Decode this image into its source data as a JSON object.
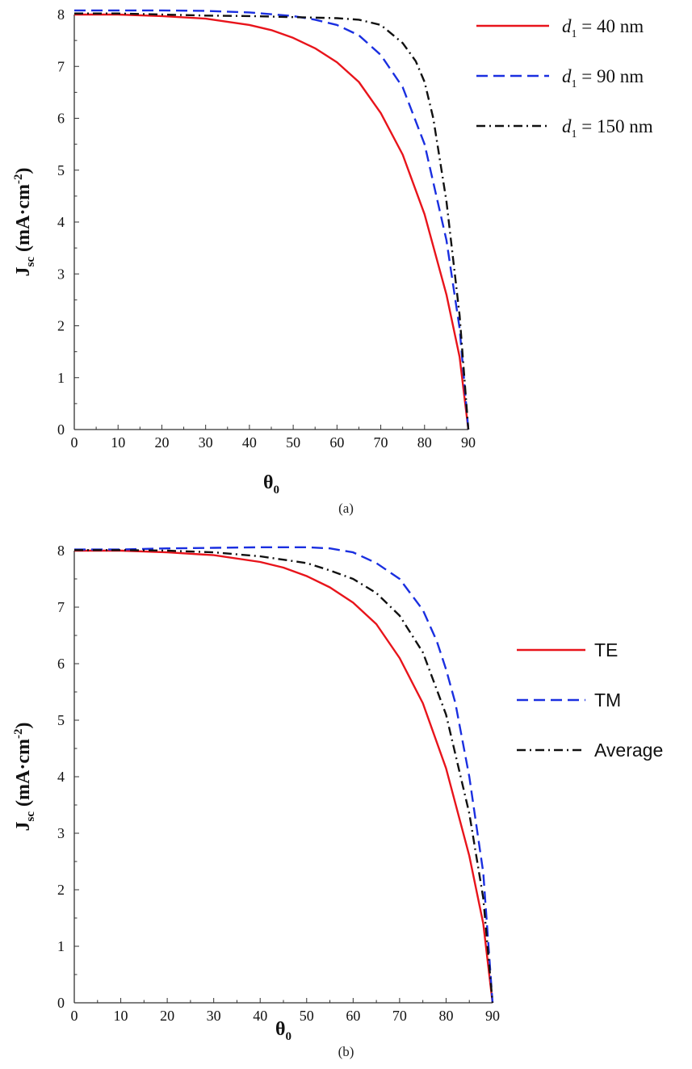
{
  "chart_data": [
    {
      "type": "line",
      "caption": "(a)",
      "xlabel": {
        "main": "θ",
        "sub": "0"
      },
      "ylabel": {
        "main": "J",
        "sub": "sc",
        "unit": " (mA·cm",
        "sup": "-2",
        "close": ")"
      },
      "xlim": [
        0,
        90
      ],
      "ylim": [
        0,
        8
      ],
      "xticks": [
        0,
        10,
        20,
        30,
        40,
        50,
        60,
        70,
        80,
        90
      ],
      "yticks": [
        0,
        1,
        2,
        3,
        4,
        5,
        6,
        7,
        8
      ],
      "grid": false,
      "legend_position": "top-right",
      "series": [
        {
          "name": "d1 = 40 nm",
          "legend": {
            "d": "d",
            "sub": "1",
            "rest": " = 40 nm"
          },
          "color": "#e8141b",
          "dash": "solid",
          "x": [
            0,
            10,
            20,
            30,
            40,
            45,
            50,
            55,
            60,
            65,
            70,
            75,
            80,
            85,
            88,
            90
          ],
          "y": [
            8.0,
            8.0,
            7.97,
            7.92,
            7.8,
            7.7,
            7.55,
            7.35,
            7.08,
            6.7,
            6.1,
            5.3,
            4.15,
            2.6,
            1.4,
            0.0
          ]
        },
        {
          "name": "d1 = 90 nm",
          "legend": {
            "d": "d",
            "sub": "1",
            "rest": " = 90 nm"
          },
          "color": "#1a2fe0",
          "dash": "dashed",
          "x": [
            0,
            10,
            20,
            30,
            40,
            50,
            55,
            60,
            65,
            70,
            75,
            80,
            85,
            88,
            90
          ],
          "y": [
            8.08,
            8.08,
            8.08,
            8.07,
            8.04,
            7.97,
            7.9,
            7.8,
            7.6,
            7.22,
            6.6,
            5.5,
            3.65,
            1.95,
            0.0
          ]
        },
        {
          "name": "d1 = 150 nm",
          "legend": {
            "d": "d",
            "sub": "1",
            "rest": " = 150 nm"
          },
          "color": "#111111",
          "dash": "dashdot",
          "x": [
            0,
            10,
            20,
            30,
            40,
            50,
            60,
            65,
            70,
            75,
            78,
            80,
            82,
            85,
            88,
            90
          ],
          "y": [
            8.02,
            8.02,
            8.0,
            7.98,
            7.97,
            7.95,
            7.93,
            7.9,
            7.8,
            7.45,
            7.1,
            6.7,
            6.0,
            4.4,
            2.2,
            0.0
          ]
        }
      ]
    },
    {
      "type": "line",
      "caption": "(b)",
      "xlabel": {
        "main": "θ",
        "sub": "0"
      },
      "ylabel": {
        "main": "J",
        "sub": "sc",
        "unit": " (mA·cm",
        "sup": "-2",
        "close": ")"
      },
      "xlim": [
        0,
        90
      ],
      "ylim": [
        0,
        8
      ],
      "xticks": [
        0,
        10,
        20,
        30,
        40,
        50,
        60,
        70,
        80,
        90
      ],
      "yticks": [
        0,
        1,
        2,
        3,
        4,
        5,
        6,
        7,
        8
      ],
      "grid": false,
      "legend_position": "right",
      "series": [
        {
          "name": "TE",
          "color": "#e8141b",
          "dash": "solid",
          "x": [
            0,
            10,
            20,
            30,
            40,
            45,
            50,
            55,
            60,
            65,
            70,
            75,
            80,
            85,
            88,
            90
          ],
          "y": [
            8.0,
            8.0,
            7.97,
            7.92,
            7.8,
            7.7,
            7.55,
            7.35,
            7.08,
            6.7,
            6.1,
            5.3,
            4.15,
            2.6,
            1.4,
            0.0
          ]
        },
        {
          "name": "TM",
          "color": "#1a2fe0",
          "dash": "dashed",
          "x": [
            0,
            10,
            20,
            30,
            40,
            50,
            55,
            60,
            65,
            70,
            75,
            78,
            80,
            82,
            85,
            88,
            90
          ],
          "y": [
            8.02,
            8.02,
            8.04,
            8.05,
            8.06,
            8.06,
            8.04,
            7.97,
            7.78,
            7.5,
            6.95,
            6.4,
            5.9,
            5.3,
            4.0,
            2.3,
            0.0
          ]
        },
        {
          "name": "Average",
          "color": "#111111",
          "dash": "dashdot",
          "x": [
            0,
            10,
            20,
            30,
            40,
            45,
            50,
            55,
            60,
            65,
            70,
            75,
            80,
            85,
            88,
            90
          ],
          "y": [
            8.01,
            8.01,
            8.0,
            7.97,
            7.9,
            7.84,
            7.78,
            7.65,
            7.5,
            7.25,
            6.85,
            6.2,
            5.1,
            3.35,
            1.85,
            0.0
          ]
        }
      ]
    }
  ]
}
